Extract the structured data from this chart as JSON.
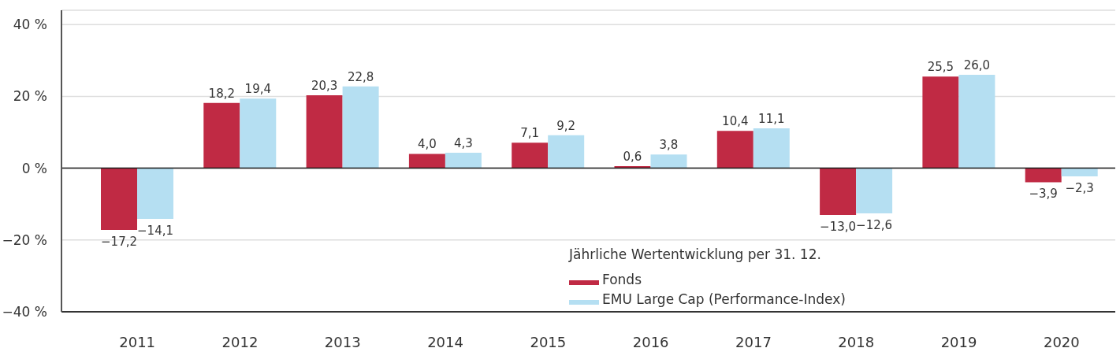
{
  "chart_data": {
    "type": "bar",
    "categories": [
      "2011",
      "2012",
      "2013",
      "2014",
      "2015",
      "2016",
      "2017",
      "2018",
      "2019",
      "2020"
    ],
    "series": [
      {
        "name": "Fonds",
        "color": "#c02a44",
        "values": [
          -17.2,
          18.2,
          20.3,
          4.0,
          7.1,
          0.6,
          10.4,
          -13.0,
          25.5,
          -3.9
        ],
        "value_labels": [
          "−17,2",
          "18,2",
          "20,3",
          "4,0",
          "7,1",
          "0,6",
          "10,4",
          "−13,0",
          "25,5",
          "−3,9"
        ]
      },
      {
        "name": "EMU Large Cap (Performance-Index)",
        "color": "#b5dff2",
        "values": [
          -14.1,
          19.4,
          22.8,
          4.3,
          9.2,
          3.8,
          11.1,
          -12.6,
          26.0,
          -2.3
        ],
        "value_labels": [
          "−14,1",
          "19,4",
          "22,8",
          "4,3",
          "9,2",
          "3,8",
          "11,1",
          "−12,6",
          "26,0",
          "−2,3"
        ]
      }
    ],
    "ylim": [
      -40,
      44
    ],
    "yticks": [
      {
        "value": -40,
        "label": "−40 %"
      },
      {
        "value": -20,
        "label": "−20 %"
      },
      {
        "value": 0,
        "label": "0 %"
      },
      {
        "value": 20,
        "label": "20 %"
      },
      {
        "value": 40,
        "label": "40 %"
      }
    ],
    "grid": "y",
    "legend": "bottom right",
    "legend_title": "Jährliche Wertentwicklung per 31. 12.",
    "ref_lines": [
      {
        "axis": "y",
        "value": 0,
        "color": "#1a1a1a"
      }
    ]
  }
}
